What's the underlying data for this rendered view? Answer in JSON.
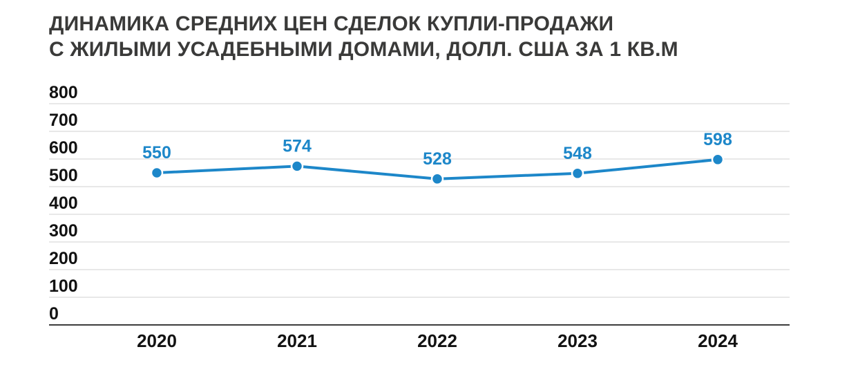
{
  "chart_data": {
    "type": "line",
    "title": "ДИНАМИКА СРЕДНИХ ЦЕН СДЕЛОК КУПЛИ-ПРОДАЖИ С ЖИЛЫМИ УСАДЕБНЫМИ ДОМАМИ, ДОЛЛ. США ЗА 1 КВ.М",
    "title_lines": [
      "ДИНАМИКА СРЕДНИХ ЦЕН СДЕЛОК КУПЛИ-ПРОДАЖИ",
      "С ЖИЛЫМИ УСАДЕБНЫМИ ДОМАМИ, ДОЛЛ. США ЗА 1 КВ.М"
    ],
    "categories": [
      "2020",
      "2021",
      "2022",
      "2023",
      "2024"
    ],
    "values": [
      550,
      574,
      528,
      548,
      598
    ],
    "data_labels": [
      "550",
      "574",
      "528",
      "548",
      "598"
    ],
    "ylim": [
      0,
      800
    ],
    "ytick_step": 100,
    "yticks": [
      "0",
      "100",
      "200",
      "300",
      "400",
      "500",
      "600",
      "700",
      "800"
    ],
    "grid": true,
    "legend": "none",
    "colors": {
      "series": "#1d87c9",
      "data_label": "#1d87c9",
      "gridline": "#e1e1e1",
      "baseline": "#3c3c3c",
      "axis_text": "#121212",
      "title": "#3a3a39",
      "background": "#ffffff",
      "point_halo": "#ffffff"
    }
  }
}
